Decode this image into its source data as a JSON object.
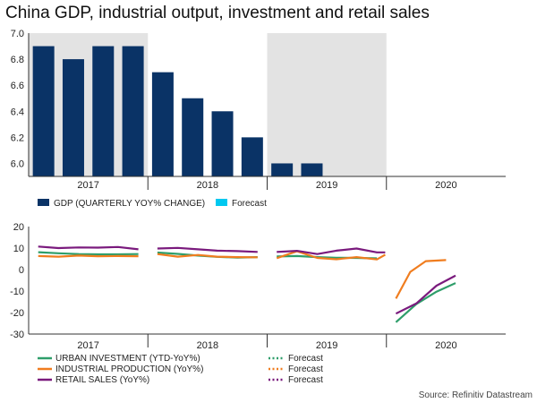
{
  "title": "China GDP, industrial output, investment and retail sales",
  "source": "Source: Refinitiv Datastream",
  "chart_data": [
    {
      "type": "bar",
      "ylim": [
        5.9,
        7.0
      ],
      "yticks": [
        "7.0",
        "6.8",
        "6.6",
        "6.4",
        "6.2",
        "6.0"
      ],
      "ytick_values": [
        7.0,
        6.8,
        6.6,
        6.4,
        6.2,
        6.0
      ],
      "years": [
        "2017",
        "2018",
        "2019",
        "2020"
      ],
      "shaded_years": [
        "2017",
        "2019"
      ],
      "grid": false,
      "colors": {
        "gdp": "#0a3366",
        "forecast": "#00c8f0",
        "shade": "#e3e3e3"
      },
      "series": [
        {
          "name": "GDP (QUARTERLY YOY% CHANGE)",
          "values": [
            6.9,
            6.8,
            6.9,
            6.9,
            6.7,
            6.5,
            6.4,
            6.2,
            6.0,
            6.0,
            null,
            null,
            null,
            null,
            null,
            null
          ]
        },
        {
          "name": "Forecast",
          "values": []
        }
      ],
      "legend_position": "bottom"
    },
    {
      "type": "line",
      "ylim": [
        -30,
        20
      ],
      "yticks": [
        "20",
        "10",
        "0",
        "-10",
        "-20",
        "-30"
      ],
      "ytick_values": [
        20,
        10,
        0,
        -10,
        -20,
        -30
      ],
      "years": [
        "2017",
        "2018",
        "2019",
        "2020"
      ],
      "grid": false,
      "series": [
        {
          "name": "URBAN INVESTMENT (YTD-YoY%)",
          "color": "#2e9e6a",
          "segments": [
            [
              [
                2017.08,
                8.1
              ],
              [
                2017.25,
                7.6
              ],
              [
                2017.42,
                7.2
              ],
              [
                2017.58,
                7.1
              ],
              [
                2017.75,
                7.1
              ],
              [
                2017.92,
                7.2
              ]
            ],
            [
              [
                2018.08,
                7.9
              ],
              [
                2018.25,
                7.3
              ],
              [
                2018.42,
                6.5
              ],
              [
                2018.58,
                5.9
              ],
              [
                2018.75,
                5.6
              ],
              [
                2018.92,
                5.8
              ]
            ],
            [
              [
                2019.08,
                6.1
              ],
              [
                2019.25,
                6.3
              ],
              [
                2019.42,
                5.8
              ],
              [
                2019.58,
                5.5
              ],
              [
                2019.75,
                5.4
              ],
              [
                2019.92,
                5.2
              ]
            ],
            [
              [
                2020.08,
                -24.5
              ],
              [
                2020.25,
                -16.1
              ],
              [
                2020.42,
                -10.3
              ],
              [
                2020.58,
                -6.3
              ]
            ]
          ]
        },
        {
          "name": "INDUSTRIAL PRODUCTION (YoY%)",
          "color": "#f07d1f",
          "segments": [
            [
              [
                2017.08,
                6.3
              ],
              [
                2017.25,
                6.0
              ],
              [
                2017.42,
                6.5
              ],
              [
                2017.58,
                6.2
              ],
              [
                2017.75,
                6.3
              ],
              [
                2017.92,
                6.2
              ]
            ],
            [
              [
                2018.08,
                7.2
              ],
              [
                2018.25,
                6.0
              ],
              [
                2018.42,
                6.8
              ],
              [
                2018.58,
                6.0
              ],
              [
                2018.75,
                5.8
              ],
              [
                2018.92,
                5.7
              ]
            ],
            [
              [
                2019.08,
                5.3
              ],
              [
                2019.25,
                8.5
              ],
              [
                2019.42,
                5.4
              ],
              [
                2019.58,
                4.8
              ],
              [
                2019.75,
                5.8
              ],
              [
                2019.92,
                4.7
              ],
              [
                2019.99,
                6.9
              ]
            ],
            [
              [
                2020.08,
                -13.5
              ],
              [
                2020.2,
                -1.1
              ],
              [
                2020.33,
                3.9
              ],
              [
                2020.5,
                4.4
              ]
            ]
          ]
        },
        {
          "name": "RETAIL SALES (YoY%)",
          "color": "#7a1a7d",
          "segments": [
            [
              [
                2017.08,
                10.7
              ],
              [
                2017.25,
                10.0
              ],
              [
                2017.42,
                10.3
              ],
              [
                2017.58,
                10.2
              ],
              [
                2017.75,
                10.5
              ],
              [
                2017.92,
                9.4
              ]
            ],
            [
              [
                2018.08,
                9.8
              ],
              [
                2018.25,
                10.1
              ],
              [
                2018.42,
                9.4
              ],
              [
                2018.58,
                8.8
              ],
              [
                2018.75,
                8.6
              ],
              [
                2018.92,
                8.2
              ]
            ],
            [
              [
                2019.08,
                8.2
              ],
              [
                2019.25,
                8.7
              ],
              [
                2019.42,
                7.2
              ],
              [
                2019.58,
                8.8
              ],
              [
                2019.75,
                9.8
              ],
              [
                2019.92,
                8.0
              ],
              [
                2019.99,
                8.0
              ]
            ],
            [
              [
                2020.08,
                -20.5
              ],
              [
                2020.25,
                -15.8
              ],
              [
                2020.42,
                -7.5
              ],
              [
                2020.58,
                -2.8
              ]
            ]
          ]
        }
      ],
      "forecast_legend": [
        "Forecast",
        "Forecast",
        "Forecast"
      ],
      "legend_position": "bottom"
    }
  ]
}
